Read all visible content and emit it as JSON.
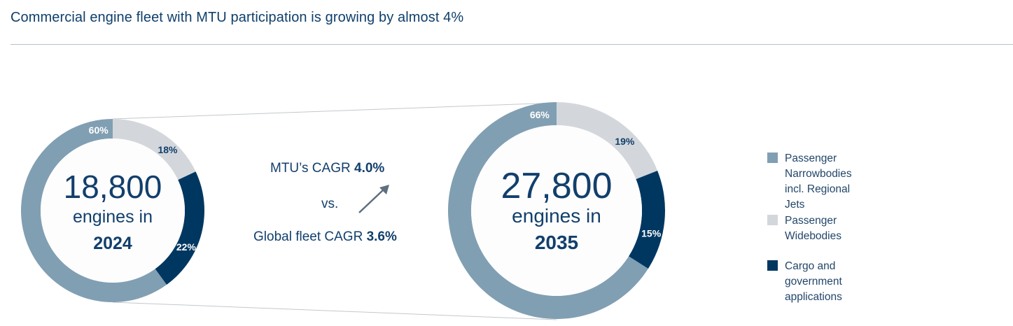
{
  "title": "Commercial engine fleet with MTU participation is growing by almost 4%",
  "cagr": {
    "mtu_label": "MTU’s CAGR",
    "mtu_value": "4.0%",
    "vs": "vs.",
    "global_label": "Global fleet CAGR",
    "global_value": "3.6%"
  },
  "colors": {
    "narrowbody": "#819fb3",
    "widebody": "#d3d7db",
    "cargo": "#003761",
    "text": "#123f6c"
  },
  "icons": {
    "trend": "arrow-up-right-icon"
  },
  "chart_data": [
    {
      "type": "pie",
      "variant": "donut",
      "center_value": "18,800",
      "center_line2": "engines in",
      "center_year": "2024",
      "slices": [
        {
          "name": "Passenger Widebodies",
          "value": 18,
          "label": "18%"
        },
        {
          "name": "Cargo and government applications",
          "value": 22,
          "label": "22%"
        },
        {
          "name": "Passenger Narrowbodies incl. Regional Jets",
          "value": 60,
          "label": "60%"
        }
      ]
    },
    {
      "type": "pie",
      "variant": "donut",
      "center_value": "27,800",
      "center_line2": "engines in",
      "center_year": "2035",
      "slices": [
        {
          "name": "Passenger Widebodies",
          "value": 19,
          "label": "19%"
        },
        {
          "name": "Cargo and government applications",
          "value": 15,
          "label": "15%"
        },
        {
          "name": "Passenger Narrowbodies incl. Regional Jets",
          "value": 66,
          "label": "66%"
        }
      ]
    }
  ],
  "legend": [
    {
      "label": "Passenger Narrowbodies\nincl. Regional Jets",
      "color": "#819fb3"
    },
    {
      "label": "Passenger Widebodies",
      "color": "#d3d7db"
    },
    {
      "label": "Cargo and government applications",
      "color": "#003761"
    }
  ]
}
